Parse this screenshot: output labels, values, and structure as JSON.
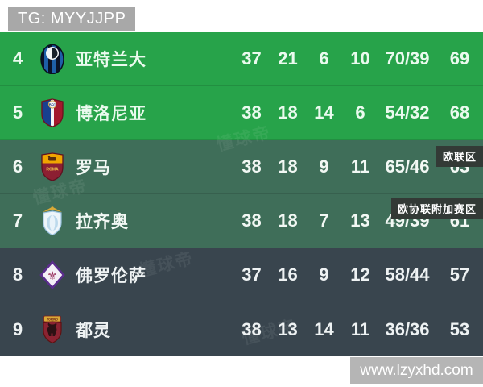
{
  "banner": {
    "text": "TG: MYYJJPP"
  },
  "footer": {
    "site": "www.lzyxhd.com"
  },
  "watermark": {
    "text": "懂球帝"
  },
  "zones": {
    "europa": "欧联区",
    "conference_playoff": "欧协联附加赛区"
  },
  "colors": {
    "champions_green": "#27a34a",
    "muted_green": "#3f6e59",
    "dark_slate": "#39454e",
    "zone_label_bg": "#333a36"
  },
  "table": {
    "rows": [
      {
        "pos": "4",
        "team": "亚特兰大",
        "crest": "atalanta-crest",
        "played": "37",
        "won": "21",
        "drawn": "6",
        "lost": "10",
        "goals": "70/39",
        "points": "69",
        "band": "green"
      },
      {
        "pos": "5",
        "team": "博洛尼亚",
        "crest": "bologna-crest",
        "played": "38",
        "won": "18",
        "drawn": "14",
        "lost": "6",
        "goals": "54/32",
        "points": "68",
        "band": "green"
      },
      {
        "pos": "6",
        "team": "罗马",
        "crest": "roma-crest",
        "played": "38",
        "won": "18",
        "drawn": "9",
        "lost": "11",
        "goals": "65/46",
        "points": "63",
        "band": "muted"
      },
      {
        "pos": "7",
        "team": "拉齐奥",
        "crest": "lazio-crest",
        "played": "38",
        "won": "18",
        "drawn": "7",
        "lost": "13",
        "goals": "49/39",
        "points": "61",
        "band": "muted"
      },
      {
        "pos": "8",
        "team": "佛罗伦萨",
        "crest": "fiorentina-crest",
        "played": "37",
        "won": "16",
        "drawn": "9",
        "lost": "12",
        "goals": "58/44",
        "points": "57",
        "band": "dark"
      },
      {
        "pos": "9",
        "team": "都灵",
        "crest": "torino-crest",
        "played": "38",
        "won": "13",
        "drawn": "14",
        "lost": "11",
        "goals": "36/36",
        "points": "53",
        "band": "dark"
      }
    ]
  }
}
